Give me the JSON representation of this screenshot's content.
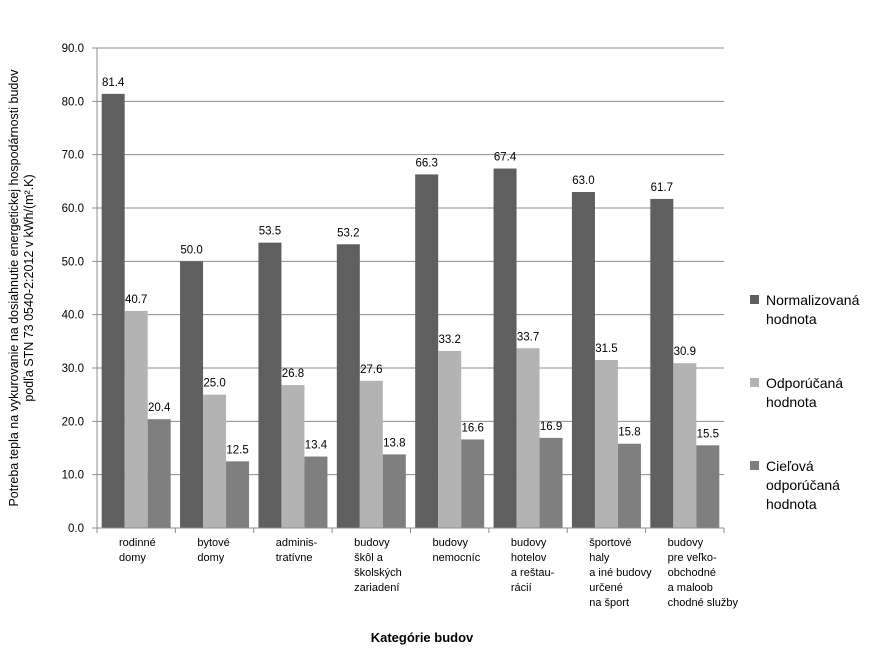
{
  "chart_data": {
    "type": "bar",
    "title": "",
    "xlabel": "Kategórie budov",
    "ylabel_lines": [
      "Potreba tepla na vykurovanie na dosiahnutie energetickej hospodárnosti budov",
      "podľa STN 73 0540-2:2012 v kWh/(m².K)"
    ],
    "ylim": [
      0,
      90
    ],
    "yticks": [
      "0.0",
      "10.0",
      "20.0",
      "30.0",
      "40.0",
      "50.0",
      "60.0",
      "70.0",
      "80.0",
      "90.0"
    ],
    "grid": true,
    "legend_position": "right",
    "categories": [
      [
        "rodinné",
        "domy"
      ],
      [
        "bytové",
        "domy"
      ],
      [
        "adminis-",
        "tratívne"
      ],
      [
        "budovy",
        "škôl a",
        "školských",
        "zariadení"
      ],
      [
        "budovy",
        "nemocníc"
      ],
      [
        "budovy",
        "hotelov",
        "a reštau-",
        "rácií"
      ],
      [
        "športové",
        "haly",
        "a iné budovy",
        "určené",
        "na šport"
      ],
      [
        "budovy",
        "pre veľko-",
        "obchodné",
        "a maloob",
        "chodné služby"
      ]
    ],
    "series": [
      {
        "name_lines": [
          "Normalizovaná",
          "hodnota"
        ],
        "color": "#5f5f5f",
        "values": [
          81.4,
          50.0,
          53.5,
          53.2,
          66.3,
          67.4,
          63.0,
          61.7
        ],
        "labels": [
          "81.4",
          "50.0",
          "53.5",
          "53.2",
          "66.3",
          "67.4",
          "63.0",
          "61.7"
        ]
      },
      {
        "name_lines": [
          "Odporúčaná",
          "hodnota"
        ],
        "color": "#b3b3b3",
        "values": [
          40.7,
          25.0,
          26.8,
          27.6,
          33.2,
          33.7,
          31.5,
          30.9
        ],
        "labels": [
          "40.7",
          "25.0",
          "26.8",
          "27.6",
          "33.2",
          "33.7",
          "31.5",
          "30.9"
        ]
      },
      {
        "name_lines": [
          "Cieľová",
          "odporúčaná",
          "hodnota"
        ],
        "color": "#7f7f7f",
        "values": [
          20.4,
          12.5,
          13.4,
          13.8,
          16.6,
          16.9,
          15.8,
          15.5
        ],
        "labels": [
          "20.4",
          "12.5",
          "13.4",
          "13.8",
          "16.6",
          "16.9",
          "15.8",
          "15.5"
        ]
      }
    ]
  }
}
